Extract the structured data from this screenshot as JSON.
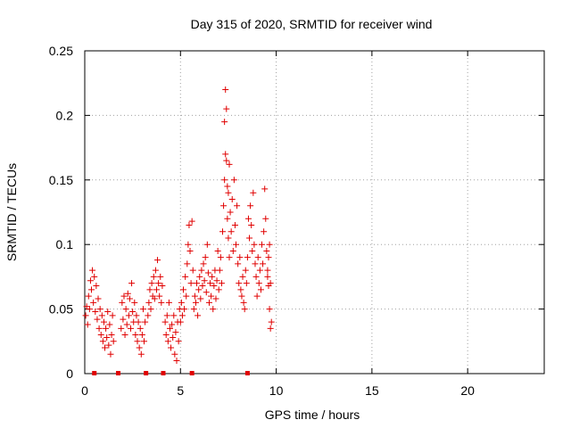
{
  "chart_data": {
    "type": "scatter",
    "title": "Day 315 of 2020, SRMTID for receiver wind",
    "xlabel": "GPS time / hours",
    "ylabel": "SRMTID / TECUs",
    "xlim": [
      0,
      24
    ],
    "ylim": [
      0,
      0.25
    ],
    "x_ticks": [
      0,
      5,
      10,
      15,
      20
    ],
    "x_tick_labels": [
      "0",
      "5",
      "10",
      "15",
      "20"
    ],
    "y_ticks": [
      0,
      0.05,
      0.1,
      0.15,
      0.2,
      0.25
    ],
    "y_tick_labels": [
      "0",
      "0.05",
      "0.1",
      "0.15",
      "0.2",
      "0.25"
    ],
    "grid": true,
    "marker": "plus",
    "color": "#e00000",
    "series": [
      {
        "name": "SRMTID",
        "points": [
          [
            0.05,
            0.045
          ],
          [
            0.1,
            0.052
          ],
          [
            0.15,
            0.038
          ],
          [
            0.2,
            0.06
          ],
          [
            0.25,
            0.05
          ],
          [
            0.3,
            0.072
          ],
          [
            0.35,
            0.065
          ],
          [
            0.4,
            0.08
          ],
          [
            0.45,
            0.055
          ],
          [
            0.5,
            0.075
          ],
          [
            0.55,
            0.048
          ],
          [
            0.6,
            0.068
          ],
          [
            0.65,
            0.042
          ],
          [
            0.7,
            0.058
          ],
          [
            0.75,
            0.035
          ],
          [
            0.8,
            0.05
          ],
          [
            0.85,
            0.03
          ],
          [
            0.9,
            0.045
          ],
          [
            0.95,
            0.025
          ],
          [
            1.0,
            0.04
          ],
          [
            1.05,
            0.02
          ],
          [
            1.1,
            0.035
          ],
          [
            1.15,
            0.028
          ],
          [
            1.2,
            0.048
          ],
          [
            1.25,
            0.022
          ],
          [
            1.3,
            0.038
          ],
          [
            1.35,
            0.015
          ],
          [
            1.4,
            0.03
          ],
          [
            1.45,
            0.045
          ],
          [
            1.5,
            0.025
          ],
          [
            1.9,
            0.035
          ],
          [
            1.95,
            0.055
          ],
          [
            2.0,
            0.042
          ],
          [
            2.05,
            0.06
          ],
          [
            2.1,
            0.03
          ],
          [
            2.15,
            0.05
          ],
          [
            2.2,
            0.038
          ],
          [
            2.25,
            0.062
          ],
          [
            2.3,
            0.045
          ],
          [
            2.35,
            0.058
          ],
          [
            2.4,
            0.035
          ],
          [
            2.45,
            0.07
          ],
          [
            2.5,
            0.048
          ],
          [
            2.55,
            0.04
          ],
          [
            2.6,
            0.055
          ],
          [
            2.65,
            0.03
          ],
          [
            2.7,
            0.045
          ],
          [
            2.75,
            0.025
          ],
          [
            2.8,
            0.04
          ],
          [
            2.85,
            0.02
          ],
          [
            2.9,
            0.035
          ],
          [
            2.95,
            0.015
          ],
          [
            3.0,
            0.03
          ],
          [
            3.05,
            0.05
          ],
          [
            3.1,
            0.025
          ],
          [
            3.15,
            0.04
          ],
          [
            3.3,
            0.045
          ],
          [
            3.35,
            0.055
          ],
          [
            3.4,
            0.065
          ],
          [
            3.45,
            0.05
          ],
          [
            3.5,
            0.07
          ],
          [
            3.55,
            0.06
          ],
          [
            3.6,
            0.075
          ],
          [
            3.65,
            0.058
          ],
          [
            3.7,
            0.08
          ],
          [
            3.75,
            0.065
          ],
          [
            3.8,
            0.088
          ],
          [
            3.85,
            0.07
          ],
          [
            3.9,
            0.06
          ],
          [
            3.95,
            0.075
          ],
          [
            4.0,
            0.055
          ],
          [
            4.05,
            0.068
          ],
          [
            4.2,
            0.04
          ],
          [
            4.25,
            0.03
          ],
          [
            4.3,
            0.045
          ],
          [
            4.35,
            0.025
          ],
          [
            4.4,
            0.055
          ],
          [
            4.45,
            0.035
          ],
          [
            4.5,
            0.02
          ],
          [
            4.55,
            0.038
          ],
          [
            4.6,
            0.028
          ],
          [
            4.65,
            0.045
          ],
          [
            4.7,
            0.015
          ],
          [
            4.75,
            0.032
          ],
          [
            4.8,
            0.01
          ],
          [
            4.85,
            0.04
          ],
          [
            4.9,
            0.025
          ],
          [
            4.95,
            0.05
          ],
          [
            5.0,
            0.04
          ],
          [
            5.05,
            0.055
          ],
          [
            5.1,
            0.045
          ],
          [
            5.15,
            0.065
          ],
          [
            5.2,
            0.05
          ],
          [
            5.25,
            0.075
          ],
          [
            5.3,
            0.06
          ],
          [
            5.35,
            0.085
          ],
          [
            5.4,
            0.1
          ],
          [
            5.45,
            0.115
          ],
          [
            5.5,
            0.095
          ],
          [
            5.55,
            0.07
          ],
          [
            5.6,
            0.118
          ],
          [
            5.65,
            0.08
          ],
          [
            5.7,
            0.05
          ],
          [
            5.75,
            0.06
          ],
          [
            5.8,
            0.055
          ],
          [
            5.85,
            0.07
          ],
          [
            5.9,
            0.045
          ],
          [
            5.95,
            0.065
          ],
          [
            6.0,
            0.075
          ],
          [
            6.05,
            0.058
          ],
          [
            6.1,
            0.08
          ],
          [
            6.15,
            0.068
          ],
          [
            6.2,
            0.085
          ],
          [
            6.25,
            0.072
          ],
          [
            6.3,
            0.09
          ],
          [
            6.35,
            0.063
          ],
          [
            6.4,
            0.1
          ],
          [
            6.45,
            0.078
          ],
          [
            6.5,
            0.055
          ],
          [
            6.55,
            0.07
          ],
          [
            6.6,
            0.06
          ],
          [
            6.65,
            0.075
          ],
          [
            6.7,
            0.05
          ],
          [
            6.75,
            0.068
          ],
          [
            6.8,
            0.08
          ],
          [
            6.85,
            0.058
          ],
          [
            6.9,
            0.072
          ],
          [
            6.95,
            0.095
          ],
          [
            7.0,
            0.065
          ],
          [
            7.05,
            0.08
          ],
          [
            7.1,
            0.09
          ],
          [
            7.15,
            0.07
          ],
          [
            7.2,
            0.11
          ],
          [
            7.25,
            0.13
          ],
          [
            7.3,
            0.15
          ],
          [
            7.35,
            0.17
          ],
          [
            7.4,
            0.165
          ],
          [
            7.45,
            0.145
          ],
          [
            7.5,
            0.14
          ],
          [
            7.55,
            0.162
          ],
          [
            7.3,
            0.195
          ],
          [
            7.4,
            0.205
          ],
          [
            7.35,
            0.22
          ],
          [
            7.45,
            0.12
          ],
          [
            7.5,
            0.105
          ],
          [
            7.55,
            0.09
          ],
          [
            7.6,
            0.125
          ],
          [
            7.65,
            0.11
          ],
          [
            7.7,
            0.135
          ],
          [
            7.75,
            0.095
          ],
          [
            7.8,
            0.15
          ],
          [
            7.85,
            0.115
          ],
          [
            7.9,
            0.1
          ],
          [
            7.95,
            0.13
          ],
          [
            8.0,
            0.085
          ],
          [
            8.05,
            0.07
          ],
          [
            8.1,
            0.09
          ],
          [
            8.15,
            0.065
          ],
          [
            8.2,
            0.06
          ],
          [
            8.25,
            0.075
          ],
          [
            8.3,
            0.055
          ],
          [
            8.35,
            0.05
          ],
          [
            8.4,
            0.08
          ],
          [
            8.45,
            0.07
          ],
          [
            8.5,
            0.09
          ],
          [
            8.55,
            0.12
          ],
          [
            8.6,
            0.105
          ],
          [
            8.65,
            0.13
          ],
          [
            8.7,
            0.115
          ],
          [
            8.75,
            0.095
          ],
          [
            8.8,
            0.14
          ],
          [
            8.85,
            0.1
          ],
          [
            8.9,
            0.085
          ],
          [
            8.95,
            0.075
          ],
          [
            9.0,
            0.06
          ],
          [
            9.05,
            0.09
          ],
          [
            9.1,
            0.07
          ],
          [
            9.15,
            0.08
          ],
          [
            9.2,
            0.065
          ],
          [
            9.25,
            0.1
          ],
          [
            9.3,
            0.085
          ],
          [
            9.35,
            0.11
          ],
          [
            9.4,
            0.143
          ],
          [
            9.45,
            0.12
          ],
          [
            9.5,
            0.095
          ],
          [
            9.55,
            0.075
          ],
          [
            9.6,
            0.068
          ],
          [
            9.65,
            0.05
          ],
          [
            9.7,
            0.035
          ],
          [
            9.75,
            0.04
          ],
          [
            9.65,
            0.1
          ],
          [
            9.6,
            0.09
          ],
          [
            9.55,
            0.08
          ],
          [
            9.7,
            0.07
          ]
        ]
      }
    ],
    "baseline_markers": [
      {
        "x": 0.5,
        "y": 0
      },
      {
        "x": 1.75,
        "y": 0
      },
      {
        "x": 3.2,
        "y": 0
      },
      {
        "x": 4.1,
        "y": 0
      },
      {
        "x": 5.6,
        "y": 0
      },
      {
        "x": 8.5,
        "y": 0
      }
    ]
  }
}
